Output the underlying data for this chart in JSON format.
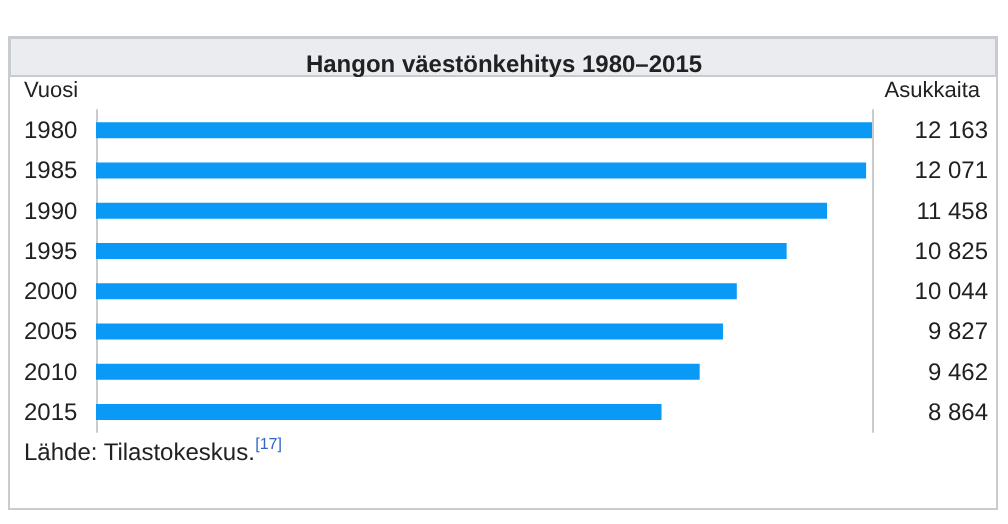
{
  "chart_data": {
    "type": "bar",
    "orientation": "horizontal",
    "title": "Hangon väestönkehitys 1980–2015",
    "ylabel": "Vuosi",
    "y2label": "Asukkaita",
    "categories": [
      "1980",
      "1985",
      "1990",
      "1995",
      "2000",
      "2005",
      "2010",
      "2015"
    ],
    "values": [
      12163,
      12071,
      11458,
      10825,
      10044,
      9827,
      9462,
      8864
    ],
    "value_labels": [
      "12 163",
      "12 071",
      "11 458",
      "10 825",
      "10 044",
      "9 827",
      "9 462",
      "8 864"
    ],
    "color": "#0a9af5",
    "annotations": [
      "Lähde: Tilastokeskus.$^{[17]}$"
    ]
  }
}
